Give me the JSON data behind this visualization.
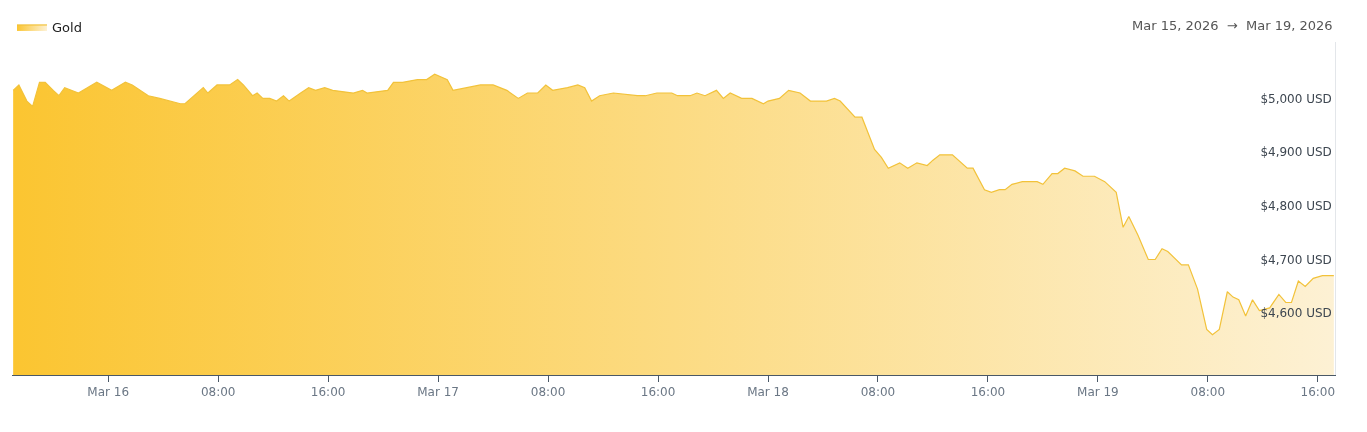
{
  "chart_data": {
    "type": "area",
    "annotations": [
      "Mar 15, 2026  →  Mar 19, 2026"
    ],
    "x": [
      "2026-03-15T17:05",
      "2026-03-15T17:30",
      "2026-03-15T18:05",
      "2026-03-15T18:30",
      "2026-03-15T19:00",
      "2026-03-15T19:25",
      "2026-03-15T20:00",
      "2026-03-15T20:25",
      "2026-03-15T20:50",
      "2026-03-15T21:50",
      "2026-03-15T23:10",
      "2026-03-16T00:15",
      "2026-03-16T01:15",
      "2026-03-16T01:45",
      "2026-03-16T02:55",
      "2026-03-16T03:45",
      "2026-03-16T05:15",
      "2026-03-16T05:35",
      "2026-03-16T06:55",
      "2026-03-16T07:15",
      "2026-03-16T07:55",
      "2026-03-16T08:50",
      "2026-03-16T09:25",
      "2026-03-16T09:50",
      "2026-03-16T10:30",
      "2026-03-16T10:50",
      "2026-03-16T11:15",
      "2026-03-16T11:45",
      "2026-03-16T12:15",
      "2026-03-16T12:45",
      "2026-03-16T13:10",
      "2026-03-16T14:00",
      "2026-03-16T14:35",
      "2026-03-16T15:05",
      "2026-03-16T15:45",
      "2026-03-16T16:20",
      "2026-03-16T17:50",
      "2026-03-16T18:30",
      "2026-03-16T18:50",
      "2026-03-16T20:20",
      "2026-03-16T20:45",
      "2026-03-16T21:25",
      "2026-03-16T22:30",
      "2026-03-16T23:10",
      "2026-03-16T23:45",
      "2026-03-17T00:40",
      "2026-03-17T01:05",
      "2026-03-17T02:05",
      "2026-03-17T03:05",
      "2026-03-17T04:00",
      "2026-03-17T05:00",
      "2026-03-17T05:50",
      "2026-03-17T06:30",
      "2026-03-17T07:15",
      "2026-03-17T07:50",
      "2026-03-17T08:20",
      "2026-03-17T09:25",
      "2026-03-17T10:10",
      "2026-03-17T10:40",
      "2026-03-17T11:10",
      "2026-03-17T11:45",
      "2026-03-17T12:45",
      "2026-03-17T14:30",
      "2026-03-17T15:05",
      "2026-03-17T15:55",
      "2026-03-17T17:00",
      "2026-03-17T17:25",
      "2026-03-17T18:20",
      "2026-03-17T18:50",
      "2026-03-17T19:25",
      "2026-03-17T20:15",
      "2026-03-17T20:45",
      "2026-03-17T21:15",
      "2026-03-17T22:05",
      "2026-03-17T22:50",
      "2026-03-17T23:40",
      "2026-03-18T00:00",
      "2026-03-18T00:50",
      "2026-03-18T01:30",
      "2026-03-18T02:20",
      "2026-03-18T03:05",
      "2026-03-18T04:15",
      "2026-03-18T04:50",
      "2026-03-18T05:15",
      "2026-03-18T06:20",
      "2026-03-18T06:50",
      "2026-03-18T07:45",
      "2026-03-18T08:15",
      "2026-03-18T08:45",
      "2026-03-18T09:35",
      "2026-03-18T10:10",
      "2026-03-18T10:50",
      "2026-03-18T11:35",
      "2026-03-18T12:00",
      "2026-03-18T12:30",
      "2026-03-18T13:25",
      "2026-03-18T14:30",
      "2026-03-18T14:55",
      "2026-03-18T15:45",
      "2026-03-18T16:15",
      "2026-03-18T16:50",
      "2026-03-18T17:15",
      "2026-03-18T17:45",
      "2026-03-18T18:30",
      "2026-03-18T19:35",
      "2026-03-18T20:00",
      "2026-03-18T20:40",
      "2026-03-18T21:05",
      "2026-03-18T21:35",
      "2026-03-18T22:20",
      "2026-03-18T22:55",
      "2026-03-18T23:45",
      "2026-03-19T00:30",
      "2026-03-19T01:20",
      "2026-03-19T01:50",
      "2026-03-19T02:15",
      "2026-03-19T02:55",
      "2026-03-19T03:40",
      "2026-03-19T04:10",
      "2026-03-19T04:40",
      "2026-03-19T05:05",
      "2026-03-19T06:05",
      "2026-03-19T06:35",
      "2026-03-19T07:15",
      "2026-03-19T07:55",
      "2026-03-19T08:20",
      "2026-03-19T08:50",
      "2026-03-19T09:25",
      "2026-03-19T09:50",
      "2026-03-19T10:15",
      "2026-03-19T10:45",
      "2026-03-19T11:15",
      "2026-03-19T11:45",
      "2026-03-19T12:30",
      "2026-03-19T13:10",
      "2026-03-19T13:40",
      "2026-03-19T14:05",
      "2026-03-19T14:35",
      "2026-03-19T15:05",
      "2026-03-19T15:40",
      "2026-03-19T16:20",
      "2026-03-19T17:10"
    ],
    "series": [
      {
        "name": "Gold",
        "color": "#fbc531",
        "values": [
          5015,
          5025,
          4995,
          4985,
          5030,
          5030,
          5015,
          5005,
          5020,
          5010,
          5030,
          5015,
          5030,
          5025,
          5005,
          5000,
          4990,
          4990,
          5020,
          5010,
          5025,
          5025,
          5035,
          5025,
          5005,
          5010,
          5000,
          5000,
          4995,
          5005,
          4995,
          5010,
          5020,
          5015,
          5020,
          5015,
          5010,
          5015,
          5010,
          5015,
          5030,
          5030,
          5035,
          5035,
          5045,
          5035,
          5015,
          5020,
          5025,
          5025,
          5015,
          5000,
          5010,
          5010,
          5025,
          5015,
          5020,
          5025,
          5020,
          4995,
          5005,
          5010,
          5005,
          5005,
          5010,
          5010,
          5005,
          5005,
          5010,
          5005,
          5015,
          5000,
          5010,
          5000,
          5000,
          4990,
          4995,
          5000,
          5015,
          5010,
          4995,
          4995,
          5000,
          4995,
          4965,
          4965,
          4905,
          4890,
          4870,
          4880,
          4870,
          4880,
          4875,
          4885,
          4895,
          4895,
          4870,
          4870,
          4830,
          4825,
          4830,
          4830,
          4840,
          4845,
          4845,
          4840,
          4860,
          4860,
          4870,
          4865,
          4855,
          4855,
          4845,
          4825,
          4760,
          4780,
          4745,
          4700,
          4700,
          4720,
          4715,
          4690,
          4690,
          4645,
          4570,
          4560,
          4570,
          4640,
          4630,
          4625,
          4595,
          4625,
          4605,
          4610,
          4635,
          4620,
          4620,
          4660,
          4650,
          4665,
          4670,
          4670
        ]
      }
    ],
    "xlim": [
      "2026-03-15T17:00",
      "2026-03-19T17:15"
    ],
    "xticks": [
      {
        "value": "2026-03-16",
        "label": "Mar 16"
      },
      {
        "value": "2026-03-16T08:00",
        "label": "08:00"
      },
      {
        "value": "2026-03-16T16:00",
        "label": "16:00"
      },
      {
        "value": "2026-03-17",
        "label": "Mar 17"
      },
      {
        "value": "2026-03-17T08:00",
        "label": "08:00"
      },
      {
        "value": "2026-03-17T16:00",
        "label": "16:00"
      },
      {
        "value": "2026-03-18",
        "label": "Mar 18"
      },
      {
        "value": "2026-03-18T08:00",
        "label": "08:00"
      },
      {
        "value": "2026-03-18T16:00",
        "label": "16:00"
      },
      {
        "value": "2026-03-19",
        "label": "Mar 19"
      },
      {
        "value": "2026-03-19T08:00",
        "label": "08:00"
      },
      {
        "value": "2026-03-19T16:00",
        "label": "16:00"
      }
    ],
    "ylim": [
      4485,
      5105
    ],
    "yticks": [
      {
        "value": 4600,
        "label": "$4,600 USD"
      },
      {
        "value": 4700,
        "label": "$4,700 USD"
      },
      {
        "value": 4800,
        "label": "$4,800 USD"
      },
      {
        "value": 4900,
        "label": "$4,900 USD"
      },
      {
        "value": 5000,
        "label": "$5,000 USD"
      }
    ],
    "grid": false,
    "legend": "top left",
    "marker": "none"
  }
}
